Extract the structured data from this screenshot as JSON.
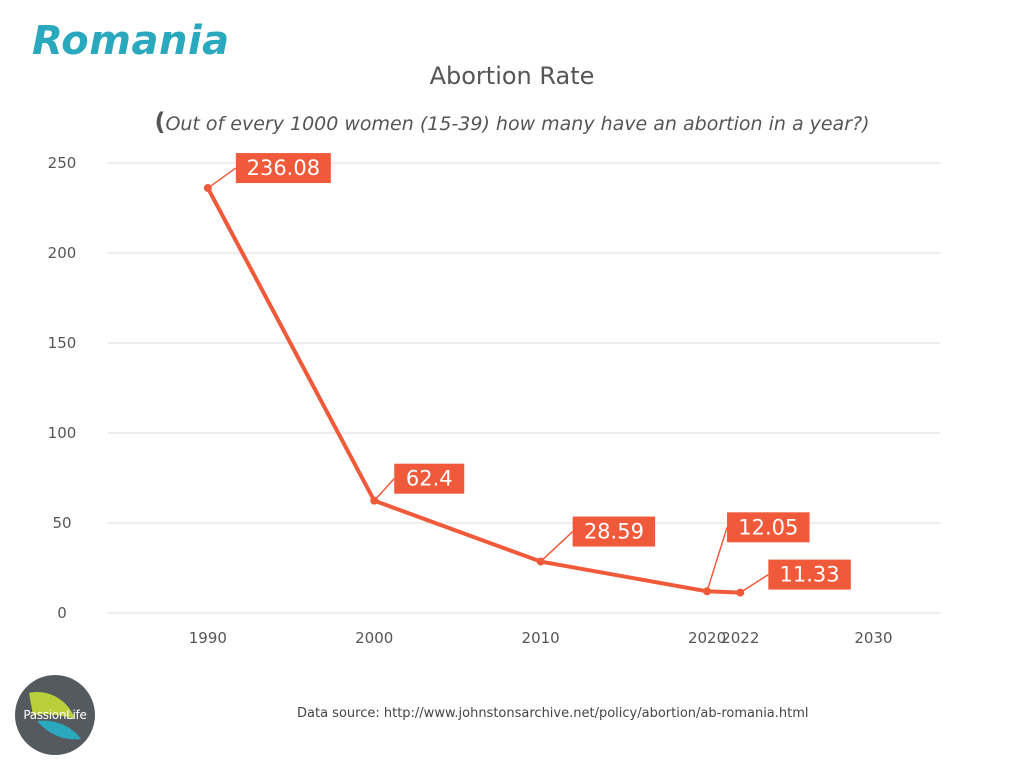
{
  "header": {
    "country": "Romania",
    "title": "Abortion Rate",
    "subtitle_paren": "(",
    "subtitle": "Out of every 1000 women (15-39) how many have an abortion in a year?)"
  },
  "footer": {
    "source": "Data source: http://www.johnstonsarchive.net/policy/abortion/ab-romania.html",
    "logo_text": "PassionLife"
  },
  "chart_data": {
    "type": "line",
    "title": "Abortion Rate",
    "subtitle": "(Out of every 1000 women (15-39) how many have an abortion in a year?)",
    "xlabel": "",
    "ylabel": "",
    "xlim": [
      1984,
      2034
    ],
    "ylim": [
      0,
      250
    ],
    "x_ticks": [
      "1990",
      "2000",
      "2010",
      "2020",
      "2022",
      "2030"
    ],
    "x_tick_values": [
      1990,
      2000,
      2010,
      2020,
      2022,
      2030
    ],
    "y_ticks": [
      "0",
      "50",
      "100",
      "150",
      "200",
      "250"
    ],
    "y_tick_values": [
      0,
      50,
      100,
      150,
      200,
      250
    ],
    "grid": "horizontal",
    "legend": "none",
    "series": [
      {
        "x": [
          1990,
          2000,
          2010,
          2020,
          2022
        ],
        "values": [
          236.08,
          62.4,
          28.59,
          12.05,
          11.33
        ],
        "labels": [
          "236.08",
          "62.4",
          "28.59",
          "12.05",
          "11.33"
        ]
      }
    ],
    "colors": {
      "line": "#f05a3a",
      "label_bg": "#f05a3a",
      "grid": "#dddddd"
    }
  }
}
